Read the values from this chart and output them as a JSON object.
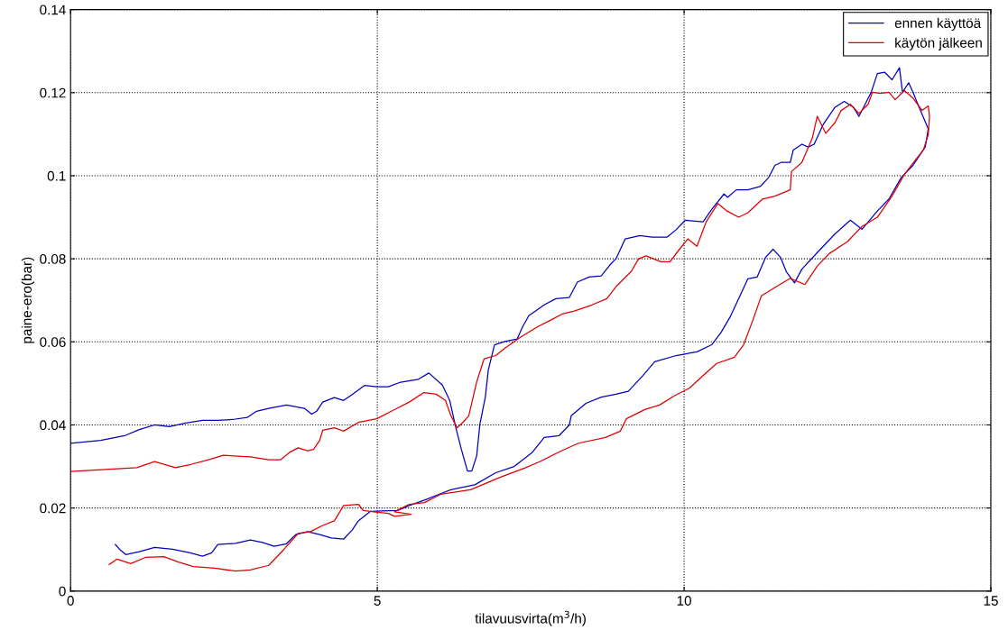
{
  "chart_data": {
    "type": "line",
    "xlabel": "tilavuusvirta(m$^{3}$/h)",
    "ylabel": "paine-ero(bar)",
    "xlim": [
      0,
      15
    ],
    "ylim": [
      0,
      0.14
    ],
    "xticks": [
      0,
      5,
      10,
      15
    ],
    "yticks": [
      0,
      0.02,
      0.04,
      0.06,
      0.08,
      0.1,
      0.12,
      0.14
    ],
    "grid": true,
    "legend": "top right",
    "line_style": "solid",
    "marker": "none",
    "series": [
      {
        "name": "ennen käyttöä",
        "color": "#0000c0",
        "x": [
          0.73,
          0.81,
          0.9,
          1.12,
          1.37,
          1.66,
          1.95,
          2.15,
          2.3,
          2.4,
          2.69,
          2.93,
          3.13,
          3.32,
          3.52,
          3.67,
          3.86,
          4.06,
          4.25,
          4.45,
          4.59,
          4.69,
          4.89,
          5.08,
          5.33,
          5.52,
          5.77,
          6.04,
          6.2,
          6.59,
          6.93,
          7.23,
          7.52,
          7.72,
          7.96,
          8.13,
          8.16,
          8.4,
          8.65,
          8.89,
          9.09,
          9.33,
          9.52,
          9.87,
          10.21,
          10.45,
          10.6,
          10.75,
          11.04,
          11.19,
          11.33,
          11.45,
          11.57,
          11.67,
          11.8,
          11.92,
          12.17,
          12.46,
          12.71,
          12.9,
          13.15,
          13.34,
          13.54,
          13.73,
          13.93,
          13.98,
          13.83,
          13.73,
          13.66,
          13.56,
          13.51,
          13.39,
          13.27,
          13.15,
          13.05,
          12.95,
          12.85,
          12.76,
          12.61,
          12.46,
          12.27,
          12.12,
          12.02,
          11.92,
          11.78,
          11.73,
          11.58,
          11.48,
          11.38,
          11.24,
          11.04,
          10.85,
          10.71,
          10.65,
          10.45,
          10.31,
          10.02,
          9.87,
          9.72,
          9.48,
          9.28,
          9.04,
          8.89,
          8.79,
          8.65,
          8.45,
          8.26,
          8.13,
          7.91,
          7.72,
          7.47,
          7.37,
          7.28,
          7.08,
          6.91,
          6.81,
          6.76,
          6.67,
          6.62,
          6.54,
          6.47,
          6.37,
          6.28,
          6.18,
          6.06,
          5.84,
          5.67,
          5.38,
          5.18,
          4.99,
          4.79,
          4.59,
          4.45,
          4.3,
          4.11,
          4.01,
          3.93,
          3.81,
          3.52,
          3.23,
          3.03,
          2.88,
          2.64,
          2.4,
          2.15,
          1.86,
          1.61,
          1.37,
          1.12,
          0.88,
          0.49,
          0.0
        ],
        "values": [
          0.0112,
          0.0099,
          0.0088,
          0.0095,
          0.0105,
          0.0101,
          0.0092,
          0.0084,
          0.0092,
          0.0112,
          0.0115,
          0.0123,
          0.0117,
          0.0108,
          0.0114,
          0.0136,
          0.0143,
          0.0136,
          0.0128,
          0.0125,
          0.0147,
          0.0169,
          0.0192,
          0.0193,
          0.0194,
          0.0206,
          0.0219,
          0.0235,
          0.0244,
          0.0256,
          0.0285,
          0.03,
          0.0333,
          0.037,
          0.0374,
          0.04,
          0.0422,
          0.0452,
          0.0467,
          0.0474,
          0.0481,
          0.0519,
          0.0552,
          0.0567,
          0.0576,
          0.0593,
          0.0622,
          0.066,
          0.0752,
          0.0756,
          0.0804,
          0.0823,
          0.0804,
          0.0768,
          0.0742,
          0.0775,
          0.0815,
          0.086,
          0.0893,
          0.0871,
          0.0915,
          0.0944,
          0.0996,
          0.1025,
          0.1069,
          0.1113,
          0.1165,
          0.1201,
          0.1224,
          0.1201,
          0.126,
          0.1231,
          0.1249,
          0.1246,
          0.1201,
          0.1172,
          0.1143,
          0.1165,
          0.1179,
          0.1165,
          0.1124,
          0.1076,
          0.1069,
          0.1076,
          0.1062,
          0.1032,
          0.1032,
          0.1025,
          0.0996,
          0.0974,
          0.0966,
          0.0966,
          0.0948,
          0.0956,
          0.0919,
          0.0889,
          0.0893,
          0.087,
          0.0852,
          0.0852,
          0.0856,
          0.0848,
          0.08,
          0.0785,
          0.0759,
          0.0756,
          0.0744,
          0.0707,
          0.0704,
          0.0689,
          0.0663,
          0.0637,
          0.0607,
          0.0601,
          0.0593,
          0.0533,
          0.0467,
          0.04,
          0.0326,
          0.0289,
          0.0289,
          0.0341,
          0.0393,
          0.0459,
          0.0496,
          0.0525,
          0.051,
          0.0503,
          0.0492,
          0.0492,
          0.0495,
          0.0473,
          0.0459,
          0.0466,
          0.0455,
          0.0433,
          0.0426,
          0.044,
          0.0448,
          0.044,
          0.0433,
          0.0418,
          0.0413,
          0.0411,
          0.0411,
          0.0404,
          0.0396,
          0.04,
          0.0389,
          0.0374,
          0.0363,
          0.0356
        ]
      },
      {
        "name": "käytön jälkeen",
        "color": "#e00000",
        "x": [
          0.63,
          0.76,
          0.98,
          1.22,
          1.52,
          1.76,
          2.0,
          2.35,
          2.69,
          2.93,
          3.23,
          3.47,
          3.71,
          3.91,
          4.11,
          4.3,
          4.45,
          4.69,
          4.77,
          4.94,
          5.18,
          5.28,
          5.55,
          5.28,
          5.52,
          5.77,
          6.03,
          6.52,
          7.0,
          7.4,
          7.64,
          7.99,
          8.28,
          8.72,
          8.96,
          9.06,
          9.36,
          9.6,
          9.84,
          10.09,
          10.28,
          10.53,
          10.82,
          10.97,
          11.12,
          11.26,
          11.48,
          11.73,
          11.97,
          12.17,
          12.36,
          12.66,
          12.9,
          13.15,
          13.39,
          13.59,
          13.78,
          13.9,
          13.98,
          14.0,
          13.98,
          13.88,
          13.73,
          13.59,
          13.44,
          13.34,
          13.2,
          13.07,
          13.0,
          12.85,
          12.71,
          12.56,
          12.46,
          12.31,
          12.17,
          12.09,
          11.92,
          11.75,
          11.73,
          11.48,
          11.28,
          11.04,
          10.89,
          10.7,
          10.55,
          10.36,
          10.21,
          10.06,
          9.92,
          9.77,
          9.62,
          9.38,
          9.26,
          9.14,
          8.89,
          8.74,
          8.5,
          8.21,
          8.01,
          7.82,
          7.62,
          7.33,
          7.08,
          6.93,
          6.74,
          6.62,
          6.49,
          6.4,
          6.3,
          6.2,
          6.11,
          5.96,
          5.76,
          5.52,
          5.28,
          4.99,
          4.69,
          4.45,
          4.3,
          4.11,
          4.06,
          3.96,
          3.86,
          3.71,
          3.57,
          3.42,
          3.23,
          2.93,
          2.49,
          2.25,
          1.96,
          1.71,
          1.37,
          1.08,
          0.0
        ],
        "values": [
          0.0064,
          0.0077,
          0.0066,
          0.0081,
          0.0083,
          0.007,
          0.0059,
          0.0055,
          0.0048,
          0.0051,
          0.0062,
          0.0099,
          0.0139,
          0.0143,
          0.0158,
          0.0169,
          0.0206,
          0.0209,
          0.0194,
          0.0191,
          0.0187,
          0.018,
          0.0185,
          0.0191,
          0.0209,
          0.0213,
          0.0233,
          0.0244,
          0.0274,
          0.0296,
          0.0311,
          0.0337,
          0.0356,
          0.037,
          0.0385,
          0.0415,
          0.0437,
          0.0448,
          0.047,
          0.0489,
          0.0515,
          0.0548,
          0.0563,
          0.0593,
          0.0652,
          0.0711,
          0.0731,
          0.0753,
          0.0738,
          0.0782,
          0.0812,
          0.0841,
          0.0878,
          0.09,
          0.0951,
          0.1003,
          0.104,
          0.1062,
          0.1099,
          0.1143,
          0.1168,
          0.1157,
          0.1187,
          0.1205,
          0.1183,
          0.1201,
          0.1198,
          0.1201,
          0.1172,
          0.115,
          0.1172,
          0.1157,
          0.1128,
          0.1102,
          0.1143,
          0.1091,
          0.1032,
          0.101,
          0.0966,
          0.0951,
          0.0944,
          0.0911,
          0.09,
          0.0915,
          0.0933,
          0.0889,
          0.083,
          0.0848,
          0.0822,
          0.0793,
          0.0793,
          0.0807,
          0.08,
          0.077,
          0.0733,
          0.0704,
          0.0689,
          0.0674,
          0.0667,
          0.0652,
          0.0637,
          0.0611,
          0.0585,
          0.0567,
          0.0559,
          0.0504,
          0.0422,
          0.0407,
          0.0393,
          0.0422,
          0.0459,
          0.0474,
          0.0478,
          0.0455,
          0.0437,
          0.0415,
          0.0406,
          0.0385,
          0.0393,
          0.0387,
          0.0363,
          0.0341,
          0.0338,
          0.0345,
          0.0334,
          0.0316,
          0.0316,
          0.0323,
          0.0327,
          0.0316,
          0.0305,
          0.0297,
          0.0312,
          0.0297,
          0.0288
        ]
      }
    ]
  }
}
